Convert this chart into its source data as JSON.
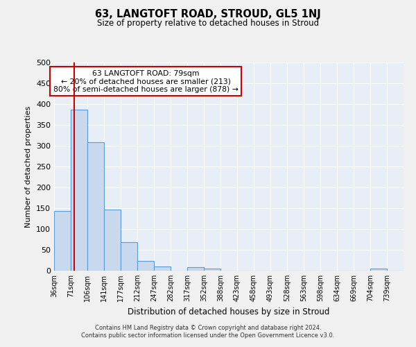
{
  "title": "63, LANGTOFT ROAD, STROUD, GL5 1NJ",
  "subtitle": "Size of property relative to detached houses in Stroud",
  "xlabel": "Distribution of detached houses by size in Stroud",
  "ylabel": "Number of detached properties",
  "bin_labels": [
    "36sqm",
    "71sqm",
    "106sqm",
    "141sqm",
    "177sqm",
    "212sqm",
    "247sqm",
    "282sqm",
    "317sqm",
    "352sqm",
    "388sqm",
    "423sqm",
    "458sqm",
    "493sqm",
    "528sqm",
    "563sqm",
    "598sqm",
    "634sqm",
    "669sqm",
    "704sqm",
    "739sqm"
  ],
  "bar_heights": [
    143,
    387,
    309,
    147,
    69,
    24,
    10,
    0,
    8,
    5,
    0,
    0,
    0,
    0,
    0,
    0,
    0,
    0,
    0,
    5,
    0
  ],
  "bar_color": "#c9d9ed",
  "bar_edge_color": "#5b9bd5",
  "property_line_color": "#cc0000",
  "annotation_text": "63 LANGTOFT ROAD: 79sqm\n← 20% of detached houses are smaller (213)\n80% of semi-detached houses are larger (878) →",
  "annotation_box_color": "#cc0000",
  "ylim": [
    0,
    500
  ],
  "yticks": [
    0,
    50,
    100,
    150,
    200,
    250,
    300,
    350,
    400,
    450,
    500
  ],
  "background_color": "#e8eef5",
  "grid_color": "#ffffff",
  "fig_background": "#f0f0f0",
  "footer_line1": "Contains HM Land Registry data © Crown copyright and database right 2024.",
  "footer_line2": "Contains public sector information licensed under the Open Government Licence v3.0."
}
